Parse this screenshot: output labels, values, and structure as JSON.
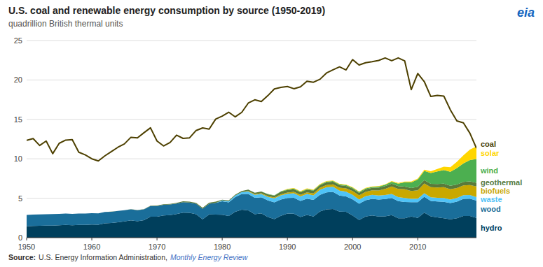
{
  "chart_data": {
    "type": "area",
    "stacked": true,
    "title": "U.S. coal and renewable energy consumption by source (1950-2019)",
    "subtitle": "quadrillion British thermal units",
    "annotations": [
      "Source:",
      "U.S. Energy Information Administration,",
      "Monthly Energy Review",
      "eia"
    ],
    "grid": true,
    "xlim": [
      1950,
      2019
    ],
    "xticks": [
      1950,
      1960,
      1970,
      1980,
      1990,
      2000,
      2010
    ],
    "ylim": [
      0,
      25
    ],
    "yticks": [
      0,
      5,
      10,
      15,
      20,
      25
    ],
    "x": [
      1950,
      1951,
      1952,
      1953,
      1954,
      1955,
      1956,
      1957,
      1958,
      1959,
      1960,
      1961,
      1962,
      1963,
      1964,
      1965,
      1966,
      1967,
      1968,
      1969,
      1970,
      1971,
      1972,
      1973,
      1974,
      1975,
      1976,
      1977,
      1978,
      1979,
      1980,
      1981,
      1982,
      1983,
      1984,
      1985,
      1986,
      1987,
      1988,
      1989,
      1990,
      1991,
      1992,
      1993,
      1994,
      1995,
      1996,
      1997,
      1998,
      1999,
      2000,
      2001,
      2002,
      2003,
      2004,
      2005,
      2006,
      2007,
      2008,
      2009,
      2010,
      2011,
      2012,
      2013,
      2014,
      2015,
      2016,
      2017,
      2018,
      2019
    ],
    "series": [
      {
        "name": "hydro",
        "color": "#003f5c",
        "values": [
          1.44,
          1.49,
          1.5,
          1.52,
          1.54,
          1.57,
          1.61,
          1.57,
          1.61,
          1.61,
          1.66,
          1.64,
          1.82,
          1.87,
          1.96,
          2.06,
          2.2,
          2.09,
          2.21,
          2.65,
          2.65,
          2.82,
          2.86,
          2.99,
          3.18,
          3.15,
          2.98,
          2.33,
          2.94,
          2.93,
          2.9,
          2.75,
          3.27,
          3.55,
          3.46,
          2.97,
          3.07,
          2.62,
          2.34,
          2.78,
          3.05,
          3.03,
          2.62,
          2.89,
          2.68,
          3.32,
          3.59,
          3.64,
          3.3,
          3.27,
          2.81,
          2.24,
          2.69,
          2.82,
          2.69,
          2.7,
          2.86,
          2.46,
          2.45,
          2.69,
          2.51,
          3.17,
          2.7,
          2.56,
          2.47,
          2.32,
          2.47,
          2.75,
          2.74,
          2.51
        ]
      },
      {
        "name": "wood",
        "color": "#1a6e9a",
        "values": [
          1.44,
          1.44,
          1.44,
          1.45,
          1.45,
          1.45,
          1.45,
          1.45,
          1.44,
          1.44,
          1.44,
          1.43,
          1.43,
          1.42,
          1.42,
          1.41,
          1.4,
          1.39,
          1.38,
          1.37,
          1.36,
          1.35,
          1.34,
          1.33,
          1.32,
          1.3,
          1.31,
          1.32,
          1.35,
          1.48,
          1.7,
          1.72,
          1.88,
          2.0,
          2.07,
          2.09,
          2.06,
          2.1,
          2.14,
          2.06,
          1.97,
          2.03,
          2.04,
          2.06,
          2.1,
          2.12,
          2.15,
          2.16,
          2.04,
          1.97,
          2.05,
          2.05,
          2.05,
          2.09,
          2.14,
          2.2,
          2.18,
          2.17,
          2.08,
          1.8,
          1.99,
          2.02,
          1.96,
          2.02,
          2.08,
          2.07,
          2.1,
          2.18,
          2.21,
          2.18
        ]
      },
      {
        "name": "waste",
        "color": "#4fc3f7",
        "values": [
          0.0,
          0.0,
          0.0,
          0.0,
          0.0,
          0.0,
          0.0,
          0.0,
          0.0,
          0.0,
          0.0,
          0.0,
          0.0,
          0.0,
          0.0,
          0.0,
          0.0,
          0.0,
          0.0,
          0.0,
          0.0,
          0.0,
          0.0,
          0.0,
          0.0,
          0.0,
          0.0,
          0.0,
          0.0,
          0.0,
          0.11,
          0.13,
          0.19,
          0.23,
          0.32,
          0.37,
          0.41,
          0.44,
          0.5,
          0.52,
          0.54,
          0.56,
          0.57,
          0.59,
          0.59,
          0.63,
          0.64,
          0.64,
          0.63,
          0.59,
          0.56,
          0.55,
          0.52,
          0.52,
          0.52,
          0.5,
          0.51,
          0.52,
          0.51,
          0.43,
          0.45,
          0.44,
          0.45,
          0.47,
          0.47,
          0.45,
          0.46,
          0.46,
          0.45,
          0.46
        ]
      },
      {
        "name": "biofuels",
        "color": "#c9a800",
        "values": [
          0.0,
          0.0,
          0.0,
          0.0,
          0.0,
          0.0,
          0.0,
          0.0,
          0.0,
          0.0,
          0.0,
          0.0,
          0.0,
          0.0,
          0.0,
          0.0,
          0.0,
          0.0,
          0.0,
          0.0,
          0.0,
          0.0,
          0.0,
          0.0,
          0.0,
          0.0,
          0.0,
          0.0,
          0.0,
          0.0,
          0.0,
          0.0,
          0.0,
          0.0,
          0.06,
          0.08,
          0.09,
          0.11,
          0.12,
          0.13,
          0.16,
          0.18,
          0.19,
          0.2,
          0.23,
          0.26,
          0.29,
          0.32,
          0.37,
          0.41,
          0.49,
          0.53,
          0.55,
          0.57,
          0.64,
          0.79,
          0.94,
          1.04,
          1.09,
          1.0,
          1.06,
          1.23,
          1.29,
          1.32,
          1.38,
          1.3,
          1.27,
          1.24,
          1.28,
          1.35
        ]
      },
      {
        "name": "geothermal",
        "color": "#5a7a3a",
        "values": [
          0.0,
          0.0,
          0.0,
          0.0,
          0.0,
          0.0,
          0.0,
          0.0,
          0.0,
          0.0,
          0.01,
          0.01,
          0.01,
          0.01,
          0.01,
          0.01,
          0.02,
          0.02,
          0.02,
          0.03,
          0.07,
          0.07,
          0.08,
          0.1,
          0.11,
          0.11,
          0.13,
          0.13,
          0.15,
          0.16,
          0.11,
          0.12,
          0.12,
          0.13,
          0.18,
          0.19,
          0.21,
          0.22,
          0.22,
          0.33,
          0.34,
          0.35,
          0.34,
          0.36,
          0.37,
          0.33,
          0.35,
          0.33,
          0.32,
          0.32,
          0.32,
          0.31,
          0.33,
          0.32,
          0.34,
          0.34,
          0.35,
          0.35,
          0.35,
          0.37,
          0.43,
          0.44,
          0.43,
          0.44,
          0.44,
          0.44,
          0.44,
          0.45,
          0.46,
          0.46
        ]
      },
      {
        "name": "wind",
        "color": "#4caf50",
        "values": [
          0.0,
          0.0,
          0.0,
          0.0,
          0.0,
          0.0,
          0.0,
          0.0,
          0.0,
          0.0,
          0.0,
          0.0,
          0.0,
          0.0,
          0.0,
          0.0,
          0.0,
          0.0,
          0.0,
          0.0,
          0.0,
          0.0,
          0.0,
          0.0,
          0.0,
          0.0,
          0.0,
          0.0,
          0.0,
          0.0,
          0.0,
          0.0,
          0.0,
          0.0,
          0.0,
          0.0,
          0.0,
          0.04,
          0.05,
          0.06,
          0.06,
          0.07,
          0.07,
          0.07,
          0.06,
          0.07,
          0.09,
          0.09,
          0.1,
          0.11,
          0.11,
          0.1,
          0.11,
          0.11,
          0.14,
          0.18,
          0.26,
          0.31,
          0.55,
          0.72,
          0.94,
          1.17,
          1.36,
          1.6,
          1.73,
          1.78,
          2.09,
          2.34,
          2.7,
          3.02
        ]
      },
      {
        "name": "solar",
        "color": "#ffd600",
        "values": [
          0.0,
          0.0,
          0.0,
          0.0,
          0.0,
          0.0,
          0.0,
          0.0,
          0.0,
          0.0,
          0.0,
          0.0,
          0.0,
          0.0,
          0.0,
          0.0,
          0.0,
          0.0,
          0.0,
          0.0,
          0.0,
          0.0,
          0.0,
          0.0,
          0.0,
          0.0,
          0.0,
          0.0,
          0.0,
          0.0,
          0.0,
          0.0,
          0.0,
          0.0,
          0.0,
          0.0,
          0.0,
          0.0,
          0.0,
          0.0,
          0.06,
          0.07,
          0.07,
          0.07,
          0.07,
          0.07,
          0.07,
          0.07,
          0.07,
          0.07,
          0.07,
          0.07,
          0.06,
          0.06,
          0.06,
          0.06,
          0.07,
          0.08,
          0.09,
          0.1,
          0.11,
          0.16,
          0.23,
          0.31,
          0.43,
          0.57,
          0.79,
          1.01,
          1.32,
          1.58
        ]
      },
      {
        "name": "coal",
        "type": "line",
        "color": "#4d4000",
        "values": [
          12.35,
          12.57,
          11.69,
          12.26,
          10.65,
          11.97,
          12.37,
          12.44,
          10.84,
          10.49,
          10.0,
          9.73,
          10.37,
          10.92,
          11.46,
          11.89,
          12.73,
          12.66,
          13.31,
          13.93,
          12.26,
          11.63,
          12.07,
          13.0,
          12.59,
          12.66,
          13.59,
          13.92,
          13.76,
          15.04,
          15.42,
          15.91,
          15.32,
          15.89,
          17.07,
          17.48,
          17.26,
          18.01,
          18.86,
          19.06,
          19.17,
          18.89,
          19.12,
          19.84,
          19.71,
          20.09,
          20.88,
          21.29,
          21.66,
          21.27,
          22.58,
          21.9,
          22.19,
          22.32,
          22.47,
          22.79,
          22.44,
          22.8,
          22.41,
          18.78,
          20.82,
          19.79,
          17.9,
          18.05,
          17.95,
          16.21,
          14.81,
          14.56,
          13.24,
          11.34
        ]
      }
    ]
  }
}
